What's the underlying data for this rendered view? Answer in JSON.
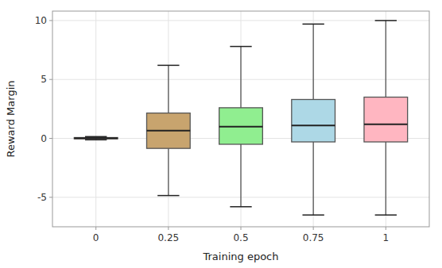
{
  "chart_data": {
    "type": "box",
    "xlabel": "Training epoch",
    "ylabel": "Reward Margin",
    "x": [
      0,
      0.25,
      0.5,
      0.75,
      1
    ],
    "whislo": [
      -0.12,
      -4.85,
      -5.8,
      -6.5,
      -6.5
    ],
    "q1": [
      -0.04,
      -0.85,
      -0.5,
      -0.3,
      -0.3
    ],
    "med": [
      0.02,
      0.65,
      1.0,
      1.1,
      1.2
    ],
    "q3": [
      0.07,
      2.15,
      2.6,
      3.3,
      3.5
    ],
    "whishi": [
      0.15,
      6.2,
      7.8,
      9.7,
      10.0
    ],
    "colors": [
      "#ff6600",
      "#c8a46e",
      "#90ee90",
      "#add8e6",
      "#ffb6c1"
    ],
    "xlim": [
      -0.15,
      1.15
    ],
    "xticks": [
      0,
      0.25,
      0.5,
      0.75,
      1
    ],
    "ylim": [
      -7.5,
      10.8
    ],
    "yticks": [
      -5,
      0,
      5,
      10
    ],
    "grid": true
  }
}
